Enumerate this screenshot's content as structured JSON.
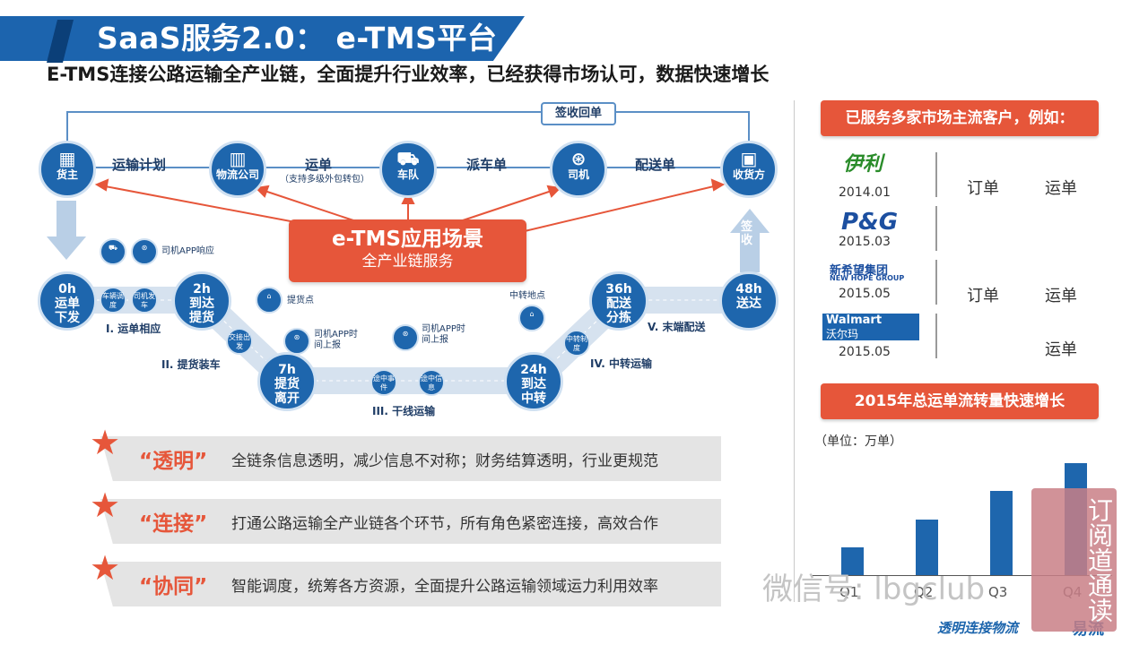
{
  "header": {
    "title": "SaaS服务2.0： e-TMS平台",
    "subtitle": "E-TMS连接公路运输全产业链，全面提升行业效率，已经获得市场认可，数据快速增长"
  },
  "flow": {
    "top_nodes": [
      {
        "label": "货主",
        "icon": "warehouse-icon"
      },
      {
        "label": "物流公司",
        "icon": "building-icon"
      },
      {
        "label": "车队",
        "icon": "truck-icon"
      },
      {
        "label": "司机",
        "icon": "steering-wheel-icon"
      },
      {
        "label": "收货方",
        "icon": "receiver-icon"
      }
    ],
    "top_edges": [
      "运输计划",
      "运单",
      "派车单",
      "配送单"
    ],
    "edge_note": "（支持多级外包转包）",
    "sign_label": "签收回单",
    "sign_arrow": "签收",
    "center_title": "e-TMS应用场景",
    "center_sub": "全产业链服务",
    "milestones": [
      {
        "time": "0h",
        "text": "运单下发"
      },
      {
        "time": "2h",
        "text": "到达提货"
      },
      {
        "time": "7h",
        "text": "提货离开"
      },
      {
        "time": "24h",
        "text": "到达中转"
      },
      {
        "time": "36h",
        "text": "配送分拣"
      },
      {
        "time": "48h",
        "text": "送达"
      }
    ],
    "small_steps": [
      "车辆调度",
      "司机发车",
      "交接出发",
      "途中事件",
      "途中信息",
      "中转制度"
    ],
    "notes": [
      "司机APP响应",
      "提货点",
      "司机APP时间上报",
      "司机APP时间上报",
      "中转地点"
    ],
    "stages": [
      "I. 运单相应",
      "II. 提货装车",
      "III. 干线运输",
      "IV. 中转运输",
      "V. 末端配送"
    ]
  },
  "features": [
    {
      "name": "“透明”",
      "desc": "全链条信息透明，减少信息不对称；财务结算透明，行业更规范"
    },
    {
      "name": "“连接”",
      "desc": "打通公路运输全产业链各个环节，所有角色紧密连接，高效合作"
    },
    {
      "name": "“协同”",
      "desc": "智能调度，统筹各方资源，全面提升公路运输领域运力利用效率"
    }
  ],
  "customers": {
    "heading": "已服务多家市场主流客户，例如：",
    "items": [
      {
        "logo": "伊利",
        "year": "2014.01",
        "tags": [
          "订单",
          "运单"
        ]
      },
      {
        "logo": "P&G",
        "year": "2015.03",
        "tags": []
      },
      {
        "logo": "新希望集团",
        "logo_sub": "NEW HOPE GROUP",
        "year": "2015.05",
        "tags": [
          "订单",
          "运单"
        ]
      },
      {
        "logo": "Walmart",
        "logo_sub": "沃尔玛",
        "year": "2015.05",
        "tags": [
          "运单"
        ]
      }
    ]
  },
  "growth": {
    "heading": "2015年总运单流转量快速增长",
    "unit": "（单位：万单）"
  },
  "chart_data": {
    "type": "bar",
    "categories": [
      "Q1",
      "Q2",
      "Q3",
      "Q4"
    ],
    "values": [
      1,
      2,
      3,
      4
    ],
    "ylabel": "（单位：万单）"
  },
  "footer": {
    "slogan": "透明连接物流",
    "brand": "易流",
    "watermark": "微信号: lbgclub",
    "seal": "订阅道通读"
  },
  "colors": {
    "primary": "#1e66ad",
    "accent": "#e6563a"
  }
}
